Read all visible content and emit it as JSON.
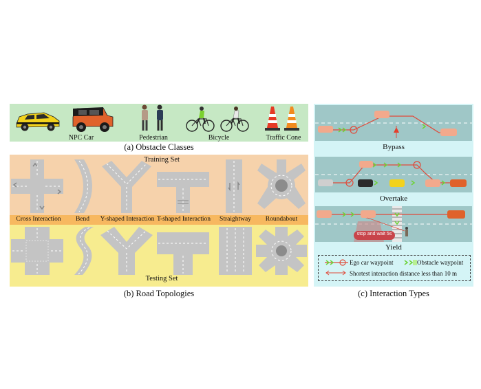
{
  "obstacles": {
    "caption": "(a) Obstacle Classes",
    "items": [
      "NPC Car",
      "Pedestrian",
      "Bicycle",
      "Traffic Cone"
    ]
  },
  "roads": {
    "caption": "(b) Road Topologies",
    "training_label": "Training Set",
    "testing_label": "Testing Set",
    "topologies": [
      "Cross Interaction",
      "Bend",
      "Y-shaped Interaction",
      "T-shaped Interaction",
      "Straightway",
      "Roundabout"
    ]
  },
  "interactions": {
    "caption": "(c) Interaction Types",
    "types": [
      "Bypass",
      "Overtake",
      "Yield"
    ],
    "stop_sign_text": "stop and wait 5s",
    "legend": {
      "ego": "Ego car waypoint",
      "obstacle": "Obstacle waypoint",
      "distance": "Shortest interaction distance less than 10 m"
    }
  },
  "colors": {
    "obstacle_bg": "#c6e8c4",
    "training_bg": "#f6d2ab",
    "testing_bg": "#f7ec8f",
    "topology_strip": "#f7b860",
    "interaction_bg": "#d4f4f6",
    "road_gray": "#c4c4c4",
    "ego_red": "#e04a3a",
    "obstacle_green": "#6fd23a"
  }
}
